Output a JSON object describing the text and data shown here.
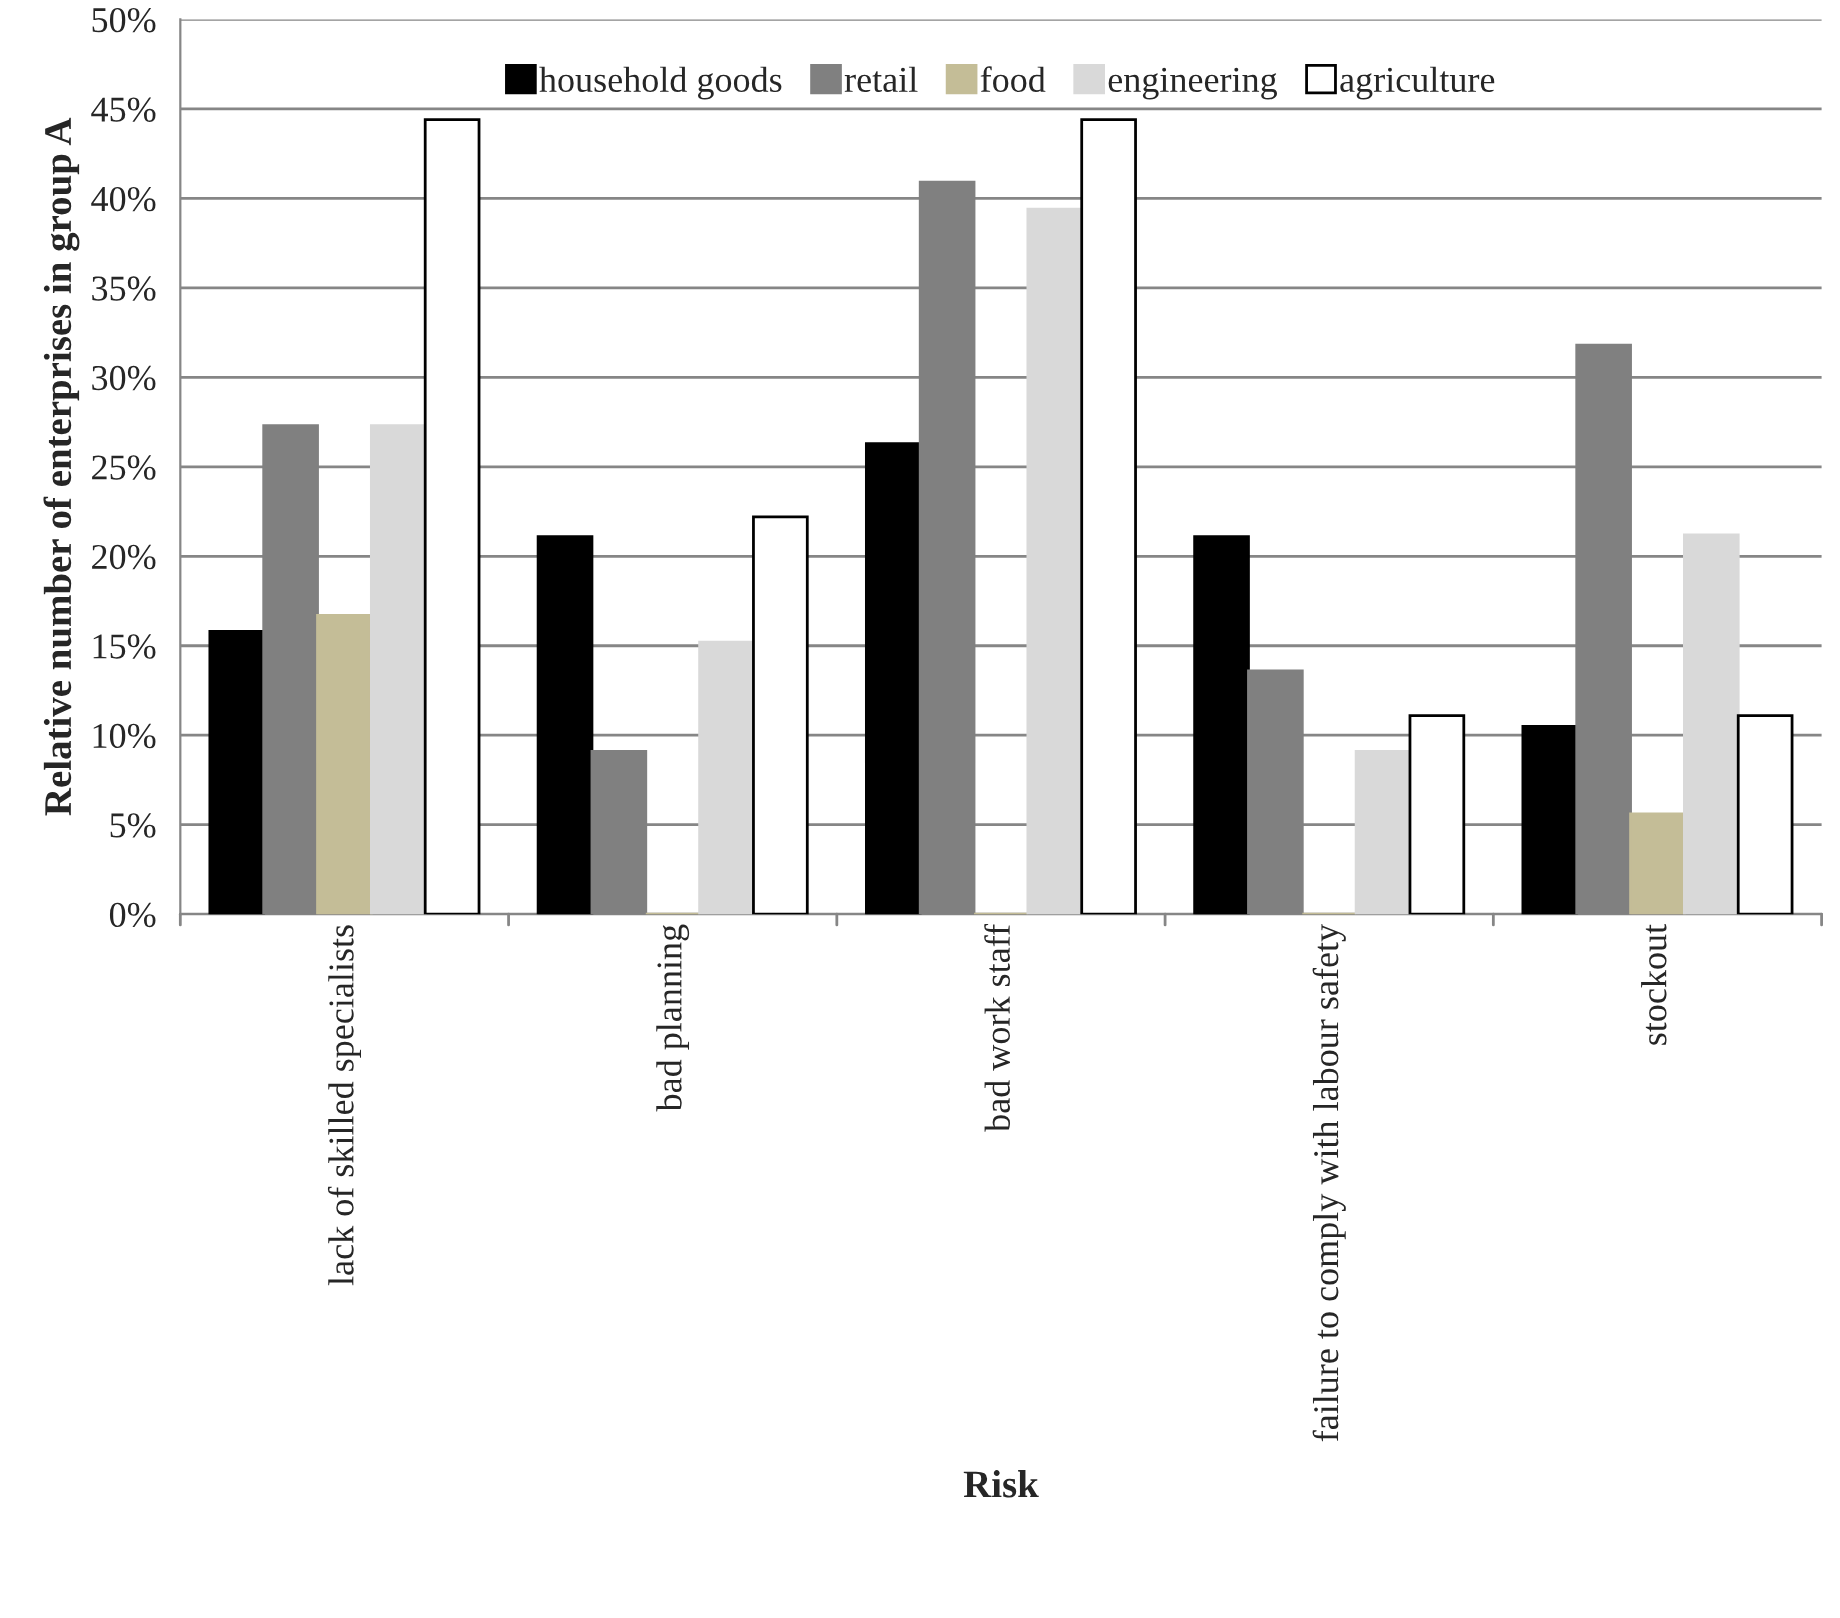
{
  "chart_data": {
    "type": "bar",
    "xlabel": "Risk",
    "ylabel": "Relative number of enterprises in group A",
    "categories": [
      "lack of skilled specialists",
      "bad planning",
      "bad work staff",
      "failure to comply with labour safety",
      "stockout"
    ],
    "series": [
      {
        "name": "household goods",
        "color": "#000000",
        "values": [
          15.8,
          21.1,
          26.3,
          21.1,
          10.5
        ]
      },
      {
        "name": "retail",
        "color": "#808080",
        "values": [
          27.3,
          9.1,
          40.9,
          13.6,
          31.8
        ]
      },
      {
        "name": "food",
        "color": "#c4bd97",
        "values": [
          16.7,
          0,
          0,
          0,
          5.6
        ]
      },
      {
        "name": "engineering",
        "color": "#d9d9d9",
        "values": [
          27.3,
          15.2,
          39.4,
          9.1,
          21.2
        ]
      },
      {
        "name": "agriculture",
        "color": "#ffffff",
        "values": [
          44.4,
          22.2,
          44.4,
          11.1,
          11.1
        ]
      }
    ],
    "ylim": [
      0,
      50
    ],
    "yticks": [
      {
        "value": 0,
        "label": "0%"
      },
      {
        "value": 5,
        "label": "5%"
      },
      {
        "value": 10,
        "label": "10%"
      },
      {
        "value": 15,
        "label": "15%"
      },
      {
        "value": 20,
        "label": "20%"
      },
      {
        "value": 25,
        "label": "25%"
      },
      {
        "value": 30,
        "label": "30%"
      },
      {
        "value": 35,
        "label": "35%"
      },
      {
        "value": 40,
        "label": "40%"
      },
      {
        "value": 45,
        "label": "45%"
      },
      {
        "value": 50,
        "label": "50%"
      }
    ],
    "grid": "y",
    "legend": "top"
  }
}
